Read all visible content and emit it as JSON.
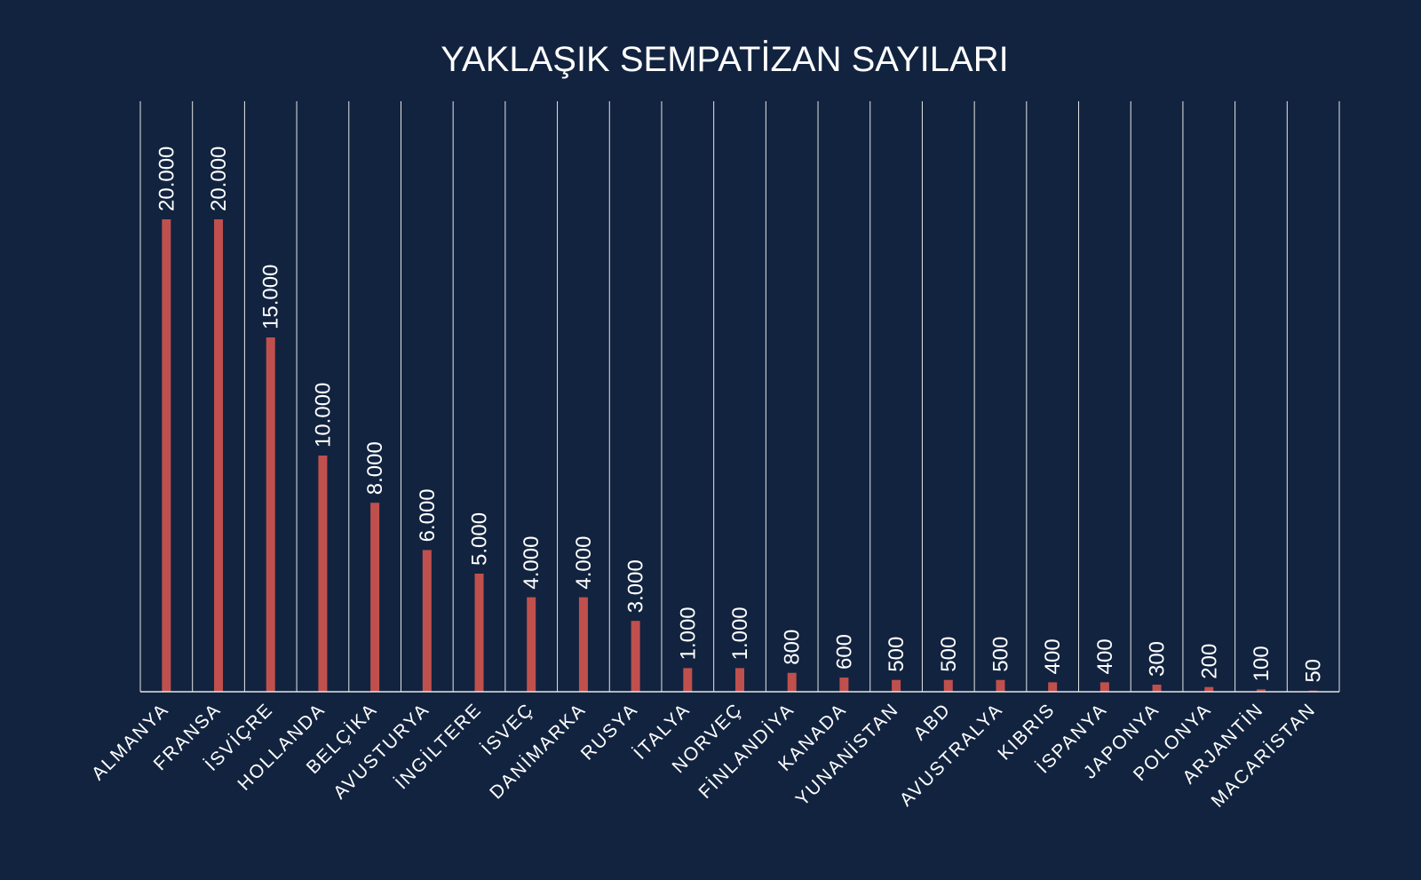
{
  "chart_data": {
    "type": "bar",
    "title": "YAKLAŞIK SEMPATİZAN SAYILARI",
    "xlabel": "",
    "ylabel": "",
    "ylim": [
      0,
      25000
    ],
    "grid": "vertical",
    "categories": [
      "ALMANYA",
      "FRANSA",
      "İSVİÇRE",
      "HOLLANDA",
      "BELÇİKA",
      "AVUSTURYA",
      "İNGİLTERE",
      "İSVEÇ",
      "DANİMARKA",
      "RUSYA",
      "İTALYA",
      "NORVEÇ",
      "FİNLANDİYA",
      "KANADA",
      "YUNANİSTAN",
      "ABD",
      "AVUSTRALYA",
      "KIBRIS",
      "İSPANYA",
      "JAPONYA",
      "POLONYA",
      "ARJANTİN",
      "MACARİSTAN"
    ],
    "values": [
      20000,
      20000,
      15000,
      10000,
      8000,
      6000,
      5000,
      4000,
      4000,
      3000,
      1000,
      1000,
      800,
      600,
      500,
      500,
      500,
      400,
      400,
      300,
      200,
      100,
      50
    ],
    "value_labels": [
      "20.000",
      "20.000",
      "15.000",
      "10.000",
      "8.000",
      "6.000",
      "5.000",
      "4.000",
      "4.000",
      "3.000",
      "1.000",
      "1.000",
      "800",
      "600",
      "500",
      "500",
      "500",
      "400",
      "400",
      "300",
      "200",
      "100",
      "50"
    ],
    "colors": {
      "background": "#12233f",
      "bar": "#c0504d",
      "grid": "#e6e6e6",
      "text": "#ffffff"
    }
  }
}
